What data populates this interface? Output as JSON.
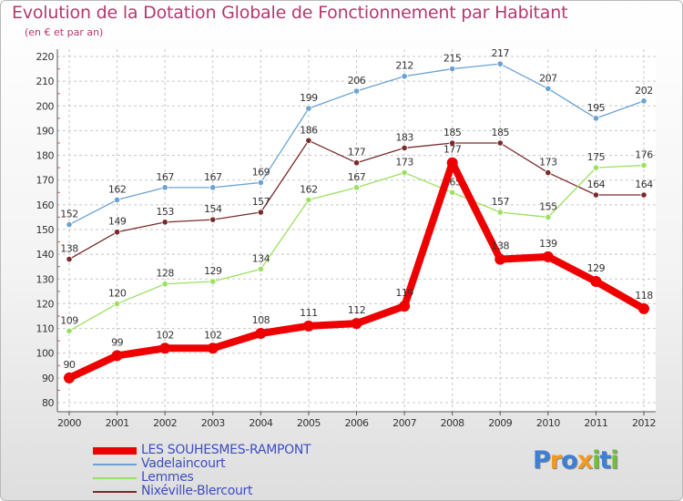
{
  "chart_data": {
    "type": "line",
    "title": "Evolution de la Dotation Globale de Fonctionnement par Habitant",
    "subtitle": "(en € et par an)",
    "x": [
      "2000",
      "2001",
      "2002",
      "2003",
      "2004",
      "2005",
      "2006",
      "2007",
      "2008",
      "2009",
      "2010",
      "2011",
      "2012"
    ],
    "ylim": [
      80,
      220
    ],
    "yticks": [
      80,
      90,
      100,
      110,
      120,
      130,
      140,
      150,
      160,
      170,
      180,
      190,
      200,
      210,
      220
    ],
    "grid": true,
    "legend_position": "bottom-left",
    "series": [
      {
        "name": "LES SOUHESMES-RAMPONT",
        "color": "#ee0000",
        "values": [
          90,
          99,
          102,
          102,
          108,
          111,
          112,
          119,
          177,
          138,
          139,
          129,
          118
        ]
      },
      {
        "name": "Vadelaincourt",
        "color": "#6aa2d4",
        "values": [
          152,
          162,
          167,
          167,
          169,
          199,
          206,
          212,
          215,
          217,
          207,
          195,
          202
        ]
      },
      {
        "name": "Lemmes",
        "color": "#9be060",
        "values": [
          109,
          120,
          128,
          129,
          134,
          162,
          167,
          173,
          165,
          157,
          155,
          175,
          176
        ]
      },
      {
        "name": "Nixéville-Blercourt",
        "color": "#7a2a2a",
        "values": [
          138,
          149,
          153,
          154,
          157,
          186,
          177,
          183,
          185,
          185,
          173,
          164,
          164
        ]
      }
    ]
  },
  "logo": {
    "text": "Proxiti",
    "letters": [
      {
        "ch": "P",
        "color": "#3c7fd4"
      },
      {
        "ch": "r",
        "color": "#f29a20"
      },
      {
        "ch": "o",
        "color": "#3c7fd4"
      },
      {
        "ch": "x",
        "color": "#f29a20"
      },
      {
        "ch": "i",
        "color": "#6fbf3a"
      },
      {
        "ch": "t",
        "color": "#3c7fd4"
      },
      {
        "ch": "i",
        "color": "#6fbf3a"
      }
    ]
  }
}
